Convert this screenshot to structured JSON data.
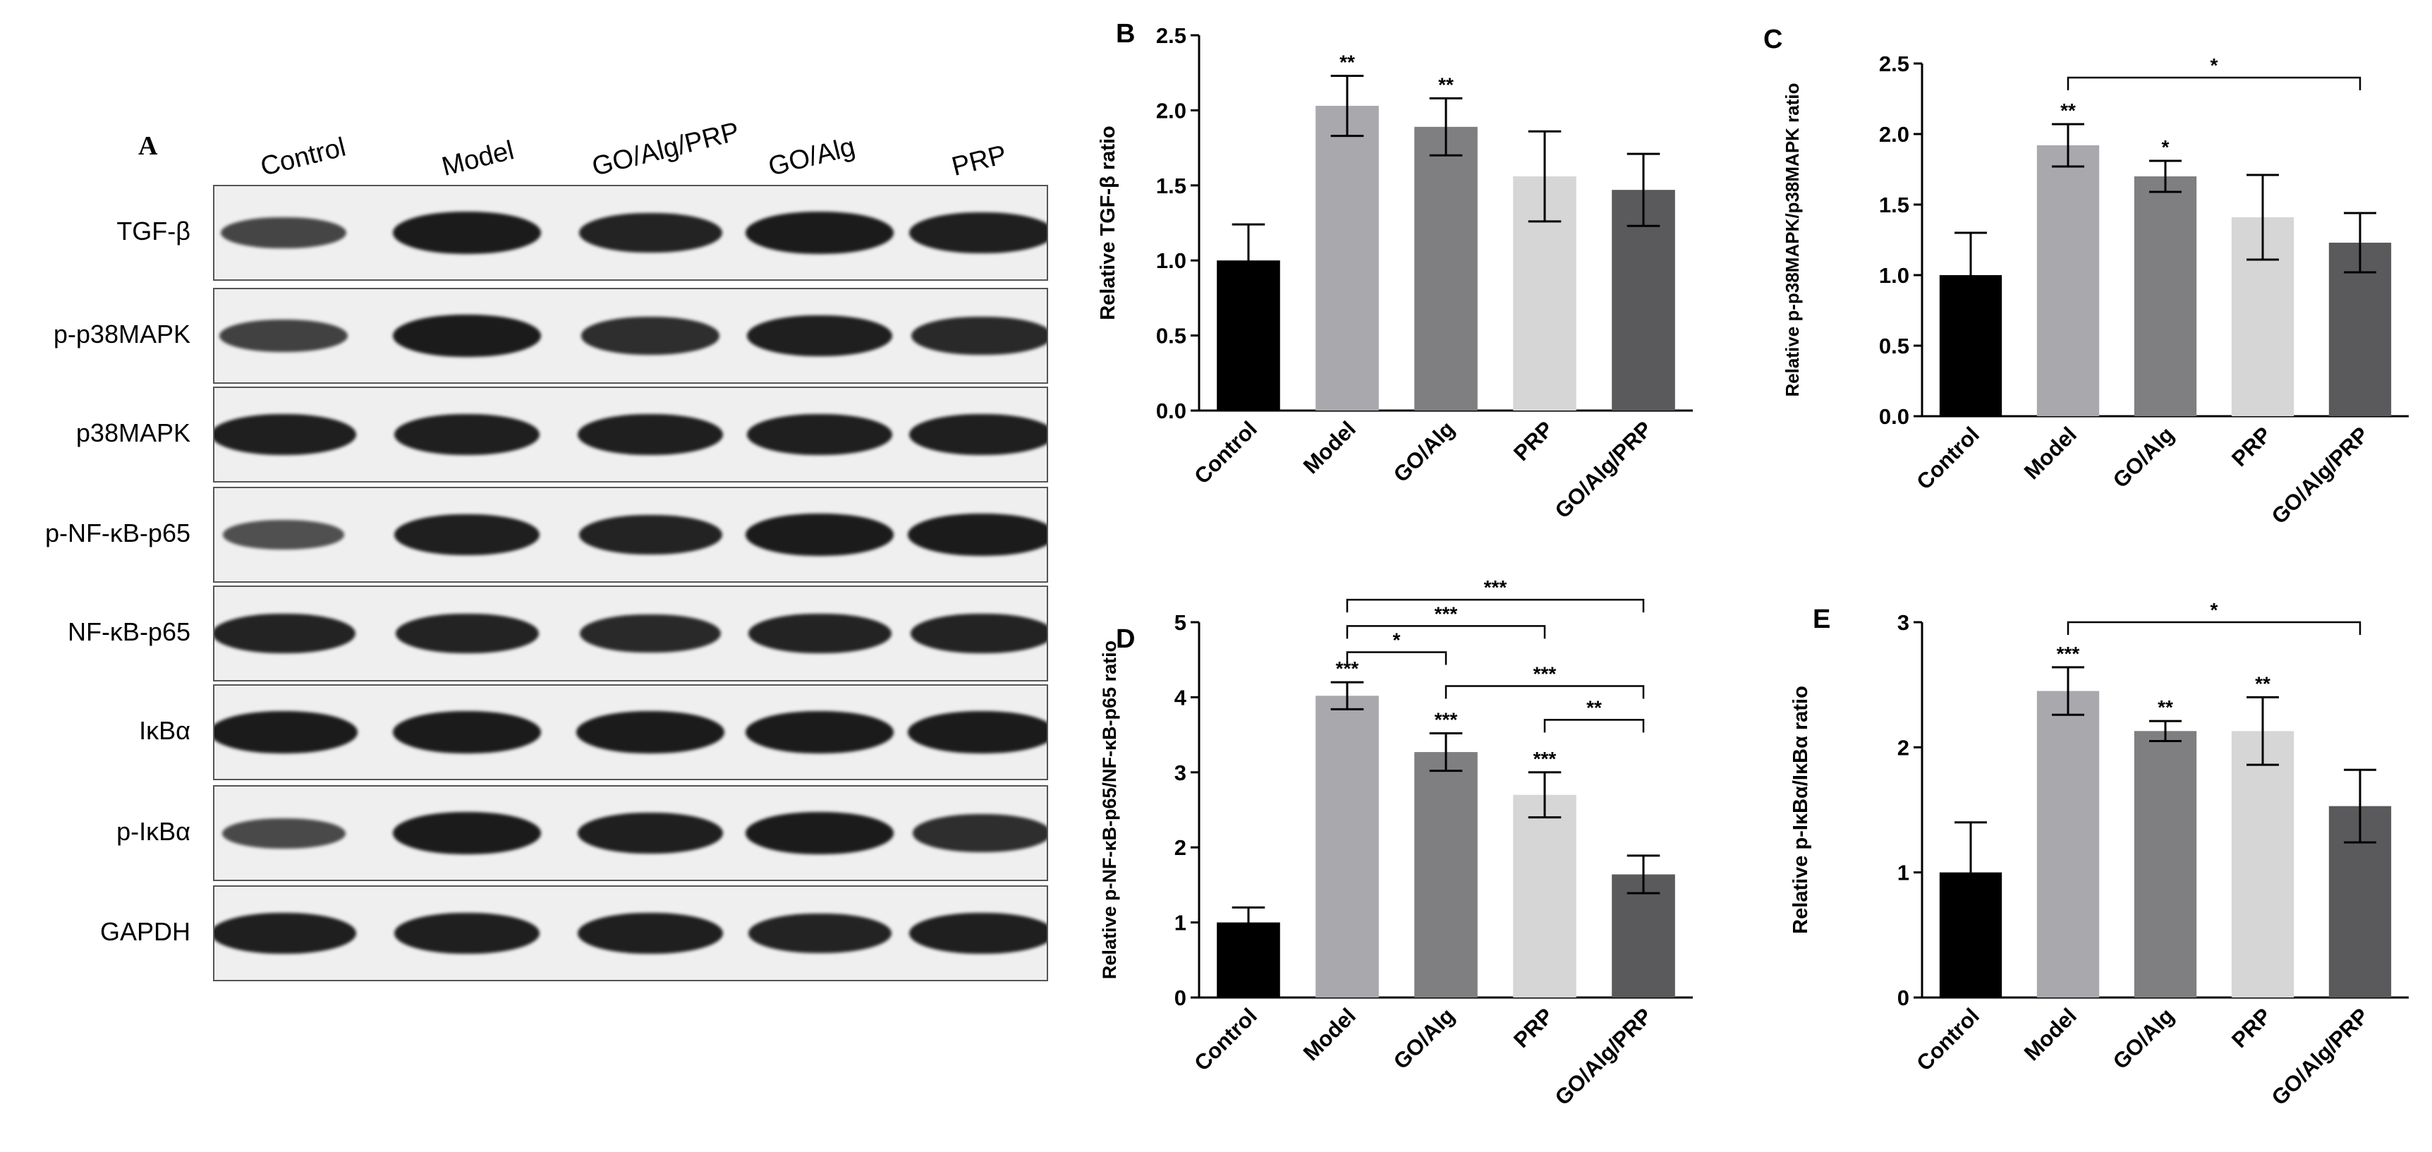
{
  "panel_a": {
    "letter": "A",
    "lanes": [
      "Control",
      "Model",
      "GO/Alg/PRP",
      "GO/Alg",
      "PRP"
    ],
    "proteins": [
      "TGF-β",
      "p-p38MAPK",
      "p38MAPK",
      "p-NF-κB-p65",
      "NF-κB-p65",
      "IκBα",
      "p-IκBα",
      "GAPDH"
    ],
    "band_intensity": [
      [
        0.55,
        1.0,
        0.9,
        1.0,
        0.95
      ],
      [
        0.6,
        1.0,
        0.8,
        0.95,
        0.85
      ],
      [
        0.95,
        0.95,
        0.95,
        0.95,
        0.95
      ],
      [
        0.45,
        0.95,
        0.9,
        1.0,
        1.0
      ],
      [
        0.9,
        0.9,
        0.85,
        0.9,
        0.9
      ],
      [
        1.0,
        1.0,
        1.0,
        1.0,
        1.0
      ],
      [
        0.5,
        1.0,
        0.95,
        1.0,
        0.8
      ],
      [
        0.95,
        0.95,
        0.95,
        0.9,
        0.95
      ]
    ]
  },
  "colors": {
    "Control": "#000000",
    "Model": "#a8a8ad",
    "GO/Alg": "#7f7f82",
    "PRP": "#d6d6d6",
    "GO/Alg/PRP": "#5a5a5c"
  },
  "chart_data": [
    {
      "panel": "B",
      "type": "bar",
      "categories": [
        "Control",
        "Model",
        "GO/Alg",
        "PRP",
        "GO/Alg/PRP"
      ],
      "values": [
        1.0,
        2.03,
        1.89,
        1.56,
        1.47
      ],
      "errors": [
        0.24,
        0.2,
        0.19,
        0.3,
        0.24
      ],
      "significance": [
        "",
        "**",
        "**",
        "",
        ""
      ],
      "ylabel": "Relative TGF-β ratio",
      "ylim": [
        0,
        2.5
      ],
      "yticks": [
        "0.0",
        "0.5",
        "1.0",
        "1.5",
        "2.0",
        "2.5"
      ],
      "brackets": []
    },
    {
      "panel": "C",
      "type": "bar",
      "categories": [
        "Control",
        "Model",
        "GO/Alg",
        "PRP",
        "GO/Alg/PRP"
      ],
      "values": [
        1.0,
        1.92,
        1.7,
        1.41,
        1.23
      ],
      "errors": [
        0.3,
        0.15,
        0.11,
        0.3,
        0.21
      ],
      "significance": [
        "",
        "**",
        "*",
        "",
        ""
      ],
      "ylabel": "Relative p-p38MAPK/p38MAPK ratio",
      "ylim": [
        0,
        2.5
      ],
      "yticks": [
        "0.0",
        "0.5",
        "1.0",
        "1.5",
        "2.0",
        "2.5"
      ],
      "brackets": [
        {
          "from": 1,
          "to": 4,
          "y": 2.4,
          "label": "*"
        }
      ]
    },
    {
      "panel": "D",
      "type": "bar",
      "categories": [
        "Control",
        "Model",
        "GO/Alg",
        "PRP",
        "GO/Alg/PRP"
      ],
      "values": [
        1.0,
        4.02,
        3.27,
        2.7,
        1.64
      ],
      "errors": [
        0.2,
        0.18,
        0.25,
        0.3,
        0.25
      ],
      "significance": [
        "",
        "***",
        "***",
        "***",
        ""
      ],
      "ylabel": "Relative p-NF-κB-p65/NF-κB-p65 ratio",
      "ylim": [
        0,
        5
      ],
      "yticks": [
        "0",
        "1",
        "2",
        "3",
        "4",
        "5"
      ],
      "brackets": [
        {
          "from": 1,
          "to": 4,
          "y": 5.3,
          "label": "***"
        },
        {
          "from": 1,
          "to": 3,
          "y": 4.95,
          "label": "***"
        },
        {
          "from": 1,
          "to": 2,
          "y": 4.6,
          "label": "*"
        },
        {
          "from": 2,
          "to": 4,
          "y": 4.15,
          "label": "***"
        },
        {
          "from": 3,
          "to": 4,
          "y": 3.7,
          "label": "**"
        }
      ]
    },
    {
      "panel": "E",
      "type": "bar",
      "categories": [
        "Control",
        "Model",
        "GO/Alg",
        "PRP",
        "GO/Alg/PRP"
      ],
      "values": [
        1.0,
        2.45,
        2.13,
        2.13,
        1.53
      ],
      "errors": [
        0.4,
        0.19,
        0.08,
        0.27,
        0.29
      ],
      "significance": [
        "",
        "***",
        "**",
        "**",
        ""
      ],
      "ylabel": "Relative p-IκBα/IκBα ratio",
      "ylim": [
        0,
        3
      ],
      "yticks": [
        "0",
        "1",
        "2",
        "3"
      ],
      "brackets": [
        {
          "from": 1,
          "to": 4,
          "y": 3.0,
          "label": "*"
        }
      ]
    }
  ]
}
